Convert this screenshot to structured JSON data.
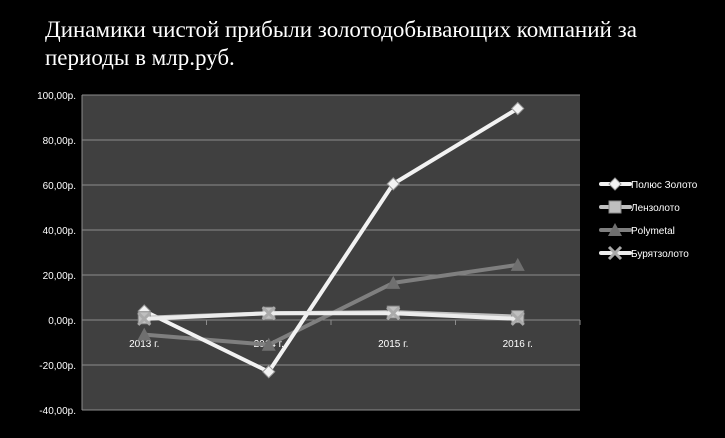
{
  "chart_data": {
    "type": "line",
    "title": "Динамики чистой прибыли золотодобывающих компаний за периоды в млр.руб.",
    "categories": [
      "2013 г.",
      "2014 г.",
      "2015 г.",
      "2016 г."
    ],
    "ylim": [
      -40,
      100
    ],
    "yticks": [
      -40,
      -20,
      0,
      20,
      40,
      60,
      80,
      100
    ],
    "ytick_labels": [
      "-40,00р.",
      "-20,00р.",
      "0,00р.",
      "20,00р.",
      "40,00р.",
      "60,00р.",
      "80,00р.",
      "100,00р."
    ],
    "grid": true,
    "legend_position": "right",
    "series": [
      {
        "name": "Полюс Золото",
        "values": [
          4,
          -23,
          60.5,
          94
        ],
        "color": "#f2f2f2",
        "marker": "diamond"
      },
      {
        "name": "Лензолото",
        "values": [
          1,
          3,
          3.5,
          1.5
        ],
        "color": "#bfbfbf",
        "marker": "square"
      },
      {
        "name": "Polymetal",
        "values": [
          -6.5,
          -11,
          16.5,
          24.5
        ],
        "color": "#7f7f7f",
        "marker": "triangle"
      },
      {
        "name": "Бурятзолото",
        "values": [
          0.5,
          3,
          3,
          0.5
        ],
        "color": "#ececec",
        "marker": "x"
      }
    ],
    "plot_background": "#404040"
  }
}
